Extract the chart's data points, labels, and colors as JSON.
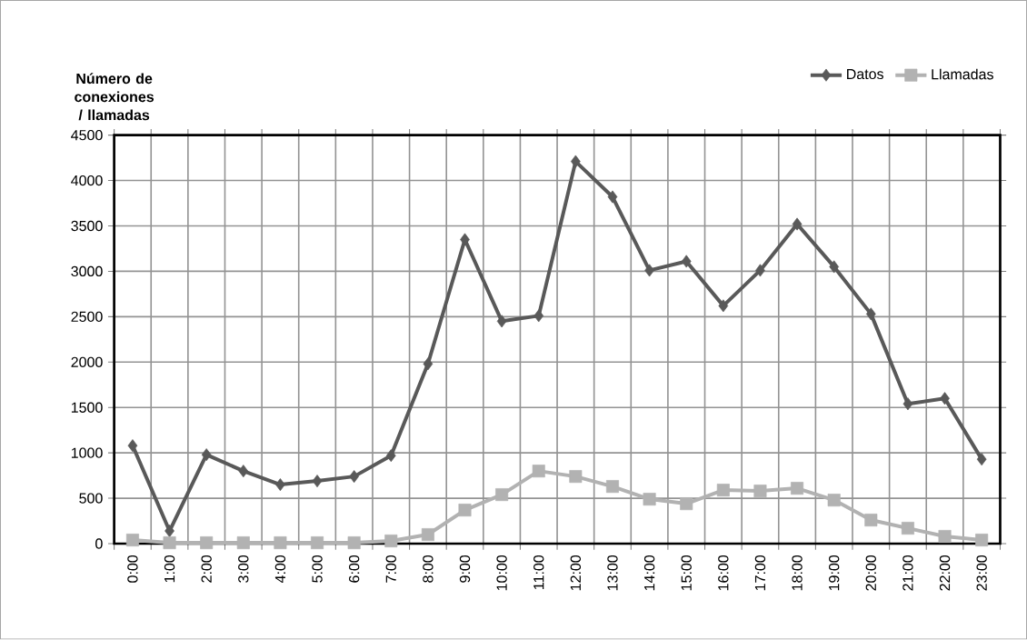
{
  "chart_data": {
    "type": "line",
    "ylabel": "Número de conexiones / llamadas",
    "categories": [
      "0:00",
      "1:00",
      "2:00",
      "3:00",
      "4:00",
      "5:00",
      "6:00",
      "7:00",
      "8:00",
      "9:00",
      "10:00",
      "11:00",
      "12:00",
      "13:00",
      "14:00",
      "15:00",
      "16:00",
      "17:00",
      "18:00",
      "19:00",
      "20:00",
      "21:00",
      "22:00",
      "23:00"
    ],
    "series": [
      {
        "name": "Datos",
        "color": "#595959",
        "marker": "diamond",
        "values": [
          1080,
          140,
          980,
          800,
          650,
          690,
          740,
          970,
          1980,
          3350,
          2450,
          2510,
          4210,
          3820,
          3010,
          3110,
          2620,
          3010,
          3520,
          3050,
          2530,
          1540,
          1600,
          930
        ]
      },
      {
        "name": "Llamadas",
        "color": "#b2b2b2",
        "marker": "square",
        "values": [
          40,
          10,
          10,
          10,
          10,
          10,
          10,
          30,
          100,
          370,
          540,
          800,
          740,
          630,
          490,
          440,
          590,
          580,
          610,
          480,
          260,
          170,
          80,
          40
        ]
      }
    ],
    "ylim": [
      0,
      4500
    ],
    "yticks": [
      0,
      500,
      1000,
      1500,
      2000,
      2500,
      3000,
      3500,
      4000,
      4500
    ],
    "grid": true,
    "legend": "top right",
    "line_style": "solid"
  }
}
